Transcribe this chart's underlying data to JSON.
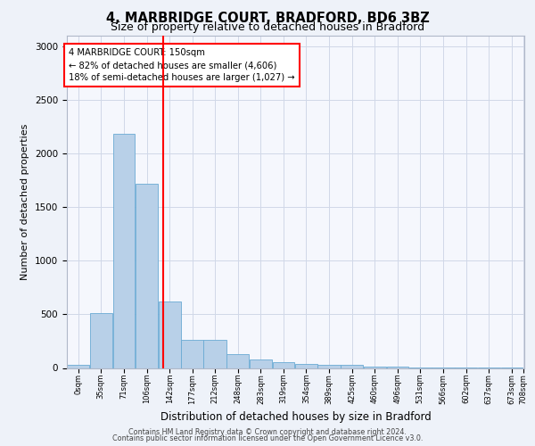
{
  "title_line1": "4, MARBRIDGE COURT, BRADFORD, BD6 3BZ",
  "title_line2": "Size of property relative to detached houses in Bradford",
  "xlabel": "Distribution of detached houses by size in Bradford",
  "ylabel": "Number of detached properties",
  "bar_color": "#b8d0e8",
  "bar_edge_color": "#6aaad4",
  "annotation_line_color": "red",
  "annotation_text": "4 MARBRIDGE COURT: 150sqm\n← 82% of detached houses are smaller (4,606)\n18% of semi-detached houses are larger (1,027) →",
  "property_size_sqm": 150,
  "categories": [
    "0sqm",
    "35sqm",
    "71sqm",
    "106sqm",
    "142sqm",
    "177sqm",
    "212sqm",
    "248sqm",
    "283sqm",
    "319sqm",
    "354sqm",
    "389sqm",
    "425sqm",
    "460sqm",
    "496sqm",
    "531sqm",
    "566sqm",
    "602sqm",
    "637sqm",
    "673sqm",
    "708sqm"
  ],
  "bar_left_edges": [
    0,
    35,
    71,
    106,
    142,
    177,
    212,
    248,
    283,
    319,
    354,
    389,
    425,
    460,
    496,
    531,
    566,
    602,
    637,
    673
  ],
  "bar_widths": [
    35,
    36,
    35,
    36,
    35,
    35,
    36,
    35,
    36,
    35,
    35,
    36,
    35,
    36,
    35,
    35,
    36,
    35,
    36,
    35
  ],
  "bar_heights": [
    30,
    510,
    2185,
    1720,
    620,
    265,
    265,
    130,
    80,
    55,
    40,
    30,
    25,
    10,
    10,
    5,
    3,
    2,
    1,
    1
  ],
  "ylim": [
    0,
    3100
  ],
  "yticks": [
    0,
    500,
    1000,
    1500,
    2000,
    2500,
    3000
  ],
  "footer_line1": "Contains HM Land Registry data © Crown copyright and database right 2024.",
  "footer_line2": "Contains public sector information licensed under the Open Government Licence v3.0.",
  "bg_color": "#eef2f9",
  "plot_bg_color": "#f5f7fd",
  "grid_color": "#d0d8e8"
}
